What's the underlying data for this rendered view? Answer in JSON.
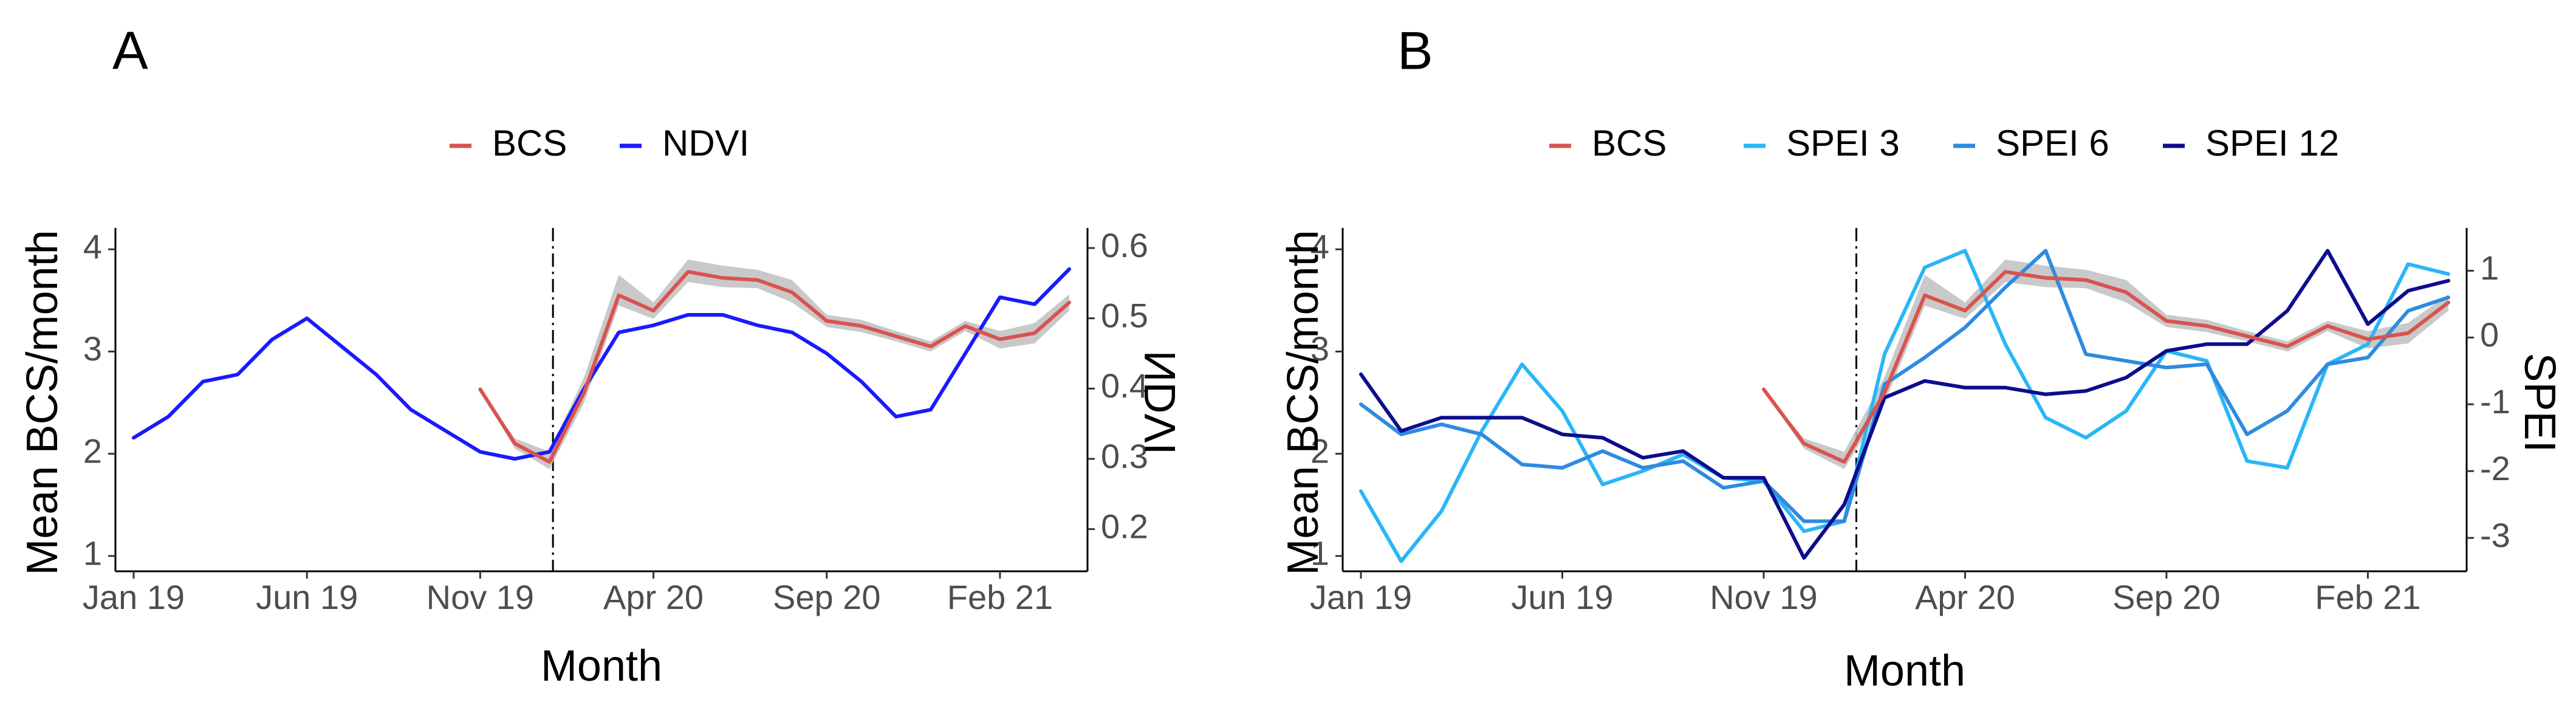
{
  "chart_data": [
    {
      "panel": "A",
      "type": "line",
      "title": "",
      "xlabel": "Month",
      "ylabel": "Mean BCS/month",
      "y2label": "NDVI",
      "x_ticks": [
        "Jan 19",
        "Jun 19",
        "Nov 19",
        "Apr 20",
        "Sep 20",
        "Feb 21"
      ],
      "x_tick_index": [
        0,
        5,
        10,
        15,
        20,
        25
      ],
      "xlim_index": [
        0,
        27
      ],
      "ylim": [
        0.85,
        4.15
      ],
      "y_ticks": [
        1,
        2,
        3,
        4
      ],
      "y2lim": [
        0.14,
        0.62
      ],
      "y2_ticks": [
        0.2,
        0.3,
        0.4,
        0.5,
        0.6
      ],
      "y2_tick_labels": [
        "0.2",
        "0.3",
        "0.4",
        "0.5",
        "0.6"
      ],
      "vline_index": 12.1,
      "legend": [
        "BCS",
        "NDVI"
      ],
      "legend_position": "top",
      "series": [
        {
          "name": "BCS",
          "axis": "left",
          "color": "#d9534f",
          "x": [
            10,
            11,
            12,
            13,
            14,
            15,
            16,
            17,
            18,
            19,
            20,
            21,
            22,
            23,
            24,
            25,
            26,
            27
          ],
          "values": [
            2.63,
            2.1,
            1.92,
            2.6,
            3.55,
            3.4,
            3.78,
            3.72,
            3.7,
            3.58,
            3.3,
            3.25,
            3.15,
            3.05,
            3.25,
            3.12,
            3.18,
            3.48
          ],
          "band_upper": [
            2.63,
            2.15,
            2.02,
            2.75,
            3.75,
            3.48,
            3.9,
            3.84,
            3.8,
            3.7,
            3.36,
            3.31,
            3.2,
            3.1,
            3.3,
            3.2,
            3.28,
            3.56
          ],
          "band_lower": [
            2.63,
            2.05,
            1.85,
            2.5,
            3.45,
            3.32,
            3.68,
            3.63,
            3.62,
            3.48,
            3.24,
            3.19,
            3.1,
            3.0,
            3.2,
            3.03,
            3.08,
            3.4
          ]
        },
        {
          "name": "NDVI",
          "axis": "right",
          "color": "#1a1aff",
          "x": [
            0,
            1,
            2,
            3,
            4,
            5,
            6,
            7,
            8,
            9,
            10,
            11,
            12,
            13,
            14,
            15,
            16,
            17,
            18,
            19,
            20,
            21,
            22,
            23,
            24,
            25,
            26,
            27
          ],
          "values": [
            0.33,
            0.36,
            0.41,
            0.42,
            0.47,
            0.5,
            0.46,
            0.42,
            0.37,
            0.34,
            0.31,
            0.3,
            0.31,
            0.4,
            0.48,
            0.49,
            0.505,
            0.505,
            0.49,
            0.48,
            0.45,
            0.41,
            0.36,
            0.37,
            0.45,
            0.53,
            0.52,
            0.57
          ]
        }
      ]
    },
    {
      "panel": "B",
      "type": "line",
      "title": "",
      "xlabel": "Month",
      "ylabel": "Mean BCS/month",
      "y2label": "SPEI",
      "x_ticks": [
        "Jan 19",
        "Jun 19",
        "Nov 19",
        "Apr 20",
        "Sep 20",
        "Feb 21"
      ],
      "x_tick_index": [
        0,
        5,
        10,
        15,
        20,
        25
      ],
      "xlim_index": [
        0,
        27
      ],
      "ylim": [
        0.85,
        4.15
      ],
      "y_ticks": [
        1,
        2,
        3,
        4
      ],
      "y2lim": [
        -3.5,
        1.55
      ],
      "y2_ticks": [
        -3,
        -2,
        -1,
        0,
        1
      ],
      "y2_tick_labels": [
        "-3",
        "-2",
        "-1",
        "0",
        "1"
      ],
      "vline_index": 12.3,
      "legend": [
        "BCS",
        "SPEI 3",
        "SPEI 6",
        "SPEI 12"
      ],
      "legend_position": "top",
      "series": [
        {
          "name": "BCS",
          "axis": "left",
          "color": "#d9534f",
          "x": [
            10,
            11,
            12,
            13,
            14,
            15,
            16,
            17,
            18,
            19,
            20,
            21,
            22,
            23,
            24,
            25,
            26,
            27
          ],
          "values": [
            2.63,
            2.1,
            1.92,
            2.6,
            3.55,
            3.4,
            3.78,
            3.72,
            3.7,
            3.58,
            3.3,
            3.25,
            3.15,
            3.05,
            3.25,
            3.12,
            3.18,
            3.48
          ],
          "band_upper": [
            2.63,
            2.15,
            2.02,
            2.75,
            3.75,
            3.48,
            3.9,
            3.84,
            3.8,
            3.7,
            3.36,
            3.31,
            3.2,
            3.1,
            3.3,
            3.2,
            3.28,
            3.56
          ],
          "band_lower": [
            2.63,
            2.05,
            1.85,
            2.5,
            3.45,
            3.32,
            3.68,
            3.63,
            3.62,
            3.48,
            3.24,
            3.19,
            3.1,
            3.0,
            3.2,
            3.03,
            3.08,
            3.4
          ]
        },
        {
          "name": "SPEI 3",
          "axis": "right",
          "color": "#29b6f6",
          "x": [
            0,
            1,
            2,
            3,
            4,
            5,
            6,
            7,
            8,
            9,
            10,
            11,
            12,
            13,
            14,
            15,
            16,
            17,
            18,
            19,
            20,
            21,
            22,
            23,
            24,
            25,
            26,
            27
          ],
          "values": [
            -2.3,
            -3.35,
            -2.6,
            -1.4,
            -0.4,
            -1.1,
            -2.2,
            -2.0,
            -1.75,
            -2.1,
            -2.15,
            -2.9,
            -2.75,
            -0.25,
            1.05,
            1.3,
            -0.1,
            -1.2,
            -1.5,
            -1.1,
            -0.2,
            -0.35,
            -1.85,
            -1.95,
            -0.4,
            -0.1,
            1.1,
            0.95
          ]
        },
        {
          "name": "SPEI 6",
          "axis": "right",
          "color": "#2e8be0",
          "x": [
            0,
            1,
            2,
            3,
            4,
            5,
            6,
            7,
            8,
            9,
            10,
            11,
            12,
            13,
            14,
            15,
            16,
            17,
            18,
            19,
            20,
            21,
            22,
            23,
            24,
            25,
            26,
            27
          ],
          "values": [
            -1.0,
            -1.45,
            -1.3,
            -1.45,
            -1.9,
            -1.95,
            -1.7,
            -1.95,
            -1.85,
            -2.25,
            -2.15,
            -2.75,
            -2.75,
            -0.7,
            -0.3,
            0.15,
            0.75,
            1.3,
            -0.25,
            -0.35,
            -0.45,
            -0.4,
            -1.45,
            -1.1,
            -0.4,
            -0.3,
            0.4,
            0.6
          ]
        },
        {
          "name": "SPEI 12",
          "axis": "right",
          "color": "#0d0d8c",
          "x": [
            0,
            1,
            2,
            3,
            4,
            5,
            6,
            7,
            8,
            9,
            10,
            11,
            12,
            13,
            14,
            15,
            16,
            17,
            18,
            19,
            20,
            21,
            22,
            23,
            24,
            25,
            26,
            27
          ],
          "values": [
            -0.55,
            -1.4,
            -1.2,
            -1.2,
            -1.2,
            -1.45,
            -1.5,
            -1.8,
            -1.7,
            -2.1,
            -2.1,
            -3.3,
            -2.5,
            -0.9,
            -0.65,
            -0.75,
            -0.75,
            -0.85,
            -0.8,
            -0.6,
            -0.2,
            -0.1,
            -0.1,
            0.4,
            1.3,
            0.2,
            0.7,
            0.85
          ]
        }
      ]
    }
  ]
}
